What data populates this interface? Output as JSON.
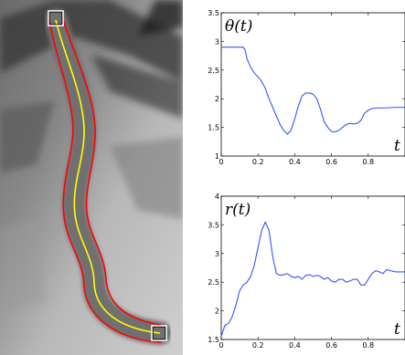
{
  "image": {
    "description_colors": {
      "background_dark": "#5a5a5a",
      "background_light": "#d9d9d9",
      "vessel_shade": "#7d7d7d",
      "centerline": "#ffff00",
      "boundary": "#ff0000",
      "endpoint_box": "#ffffff"
    }
  },
  "chart_data": [
    {
      "type": "line",
      "title": "",
      "corner_label": "θ(t)",
      "xlabel": "t",
      "ylabel": "",
      "xlim": [
        0,
        1
      ],
      "ylim": [
        1,
        3.5
      ],
      "xticks": [
        0,
        0.2,
        0.4,
        0.6,
        0.8
      ],
      "xtick_labels": [
        "0",
        "0.2",
        "0.4",
        "0.6",
        "0.8"
      ],
      "yticks": [
        1,
        1.5,
        2,
        2.5,
        3,
        3.5
      ],
      "ytick_labels": [
        "1",
        "1.5",
        "2",
        "2.5",
        "3",
        "3.5"
      ],
      "line_color": "#3355ff",
      "series": [
        {
          "x": [
            0,
            0.02,
            0.05,
            0.08,
            0.1,
            0.12,
            0.13,
            0.14,
            0.16,
            0.18,
            0.2,
            0.22,
            0.24,
            0.26,
            0.28,
            0.3,
            0.32,
            0.34,
            0.36,
            0.38,
            0.4,
            0.42,
            0.44,
            0.46,
            0.48,
            0.5,
            0.52,
            0.54,
            0.56,
            0.58,
            0.6,
            0.62,
            0.64,
            0.66,
            0.68,
            0.7,
            0.72,
            0.74,
            0.76,
            0.78,
            0.8,
            0.82,
            0.85,
            0.9,
            0.95,
            1.0
          ],
          "y": [
            2.9,
            2.9,
            2.9,
            2.9,
            2.9,
            2.9,
            2.85,
            2.7,
            2.55,
            2.45,
            2.38,
            2.3,
            2.18,
            2.0,
            1.85,
            1.7,
            1.55,
            1.45,
            1.38,
            1.45,
            1.65,
            1.88,
            2.05,
            2.1,
            2.1,
            2.08,
            2.0,
            1.82,
            1.6,
            1.5,
            1.43,
            1.42,
            1.45,
            1.5,
            1.55,
            1.57,
            1.56,
            1.57,
            1.62,
            1.75,
            1.8,
            1.83,
            1.84,
            1.84,
            1.85,
            1.85
          ]
        }
      ]
    },
    {
      "type": "line",
      "title": "",
      "corner_label": "r(t)",
      "xlabel": "t",
      "ylabel": "",
      "xlim": [
        0,
        1
      ],
      "ylim": [
        1.5,
        4
      ],
      "xticks": [
        0,
        0.2,
        0.4,
        0.6,
        0.8
      ],
      "xtick_labels": [
        "0",
        "0.2",
        "0.4",
        "0.6",
        "0.8"
      ],
      "yticks": [
        1.5,
        2,
        2.5,
        3,
        3.5,
        4
      ],
      "ytick_labels": [
        "1.5",
        "2",
        "2.5",
        "3",
        "3.5",
        "4"
      ],
      "line_color": "#3355ff",
      "series": [
        {
          "x": [
            0,
            0.02,
            0.04,
            0.06,
            0.08,
            0.1,
            0.12,
            0.14,
            0.16,
            0.18,
            0.2,
            0.22,
            0.24,
            0.26,
            0.28,
            0.3,
            0.32,
            0.34,
            0.36,
            0.38,
            0.4,
            0.42,
            0.44,
            0.46,
            0.48,
            0.5,
            0.52,
            0.54,
            0.56,
            0.58,
            0.6,
            0.62,
            0.64,
            0.66,
            0.68,
            0.7,
            0.72,
            0.74,
            0.76,
            0.78,
            0.8,
            0.82,
            0.84,
            0.86,
            0.88,
            0.9,
            0.92,
            0.95,
            1.0
          ],
          "y": [
            1.55,
            1.75,
            1.78,
            1.9,
            2.1,
            2.35,
            2.45,
            2.5,
            2.6,
            2.8,
            3.1,
            3.4,
            3.55,
            3.4,
            2.95,
            2.65,
            2.62,
            2.63,
            2.65,
            2.6,
            2.58,
            2.6,
            2.55,
            2.62,
            2.63,
            2.6,
            2.62,
            2.6,
            2.55,
            2.58,
            2.52,
            2.5,
            2.55,
            2.55,
            2.5,
            2.52,
            2.55,
            2.55,
            2.45,
            2.45,
            2.55,
            2.65,
            2.7,
            2.68,
            2.65,
            2.72,
            2.7,
            2.68,
            2.68
          ]
        }
      ]
    }
  ]
}
